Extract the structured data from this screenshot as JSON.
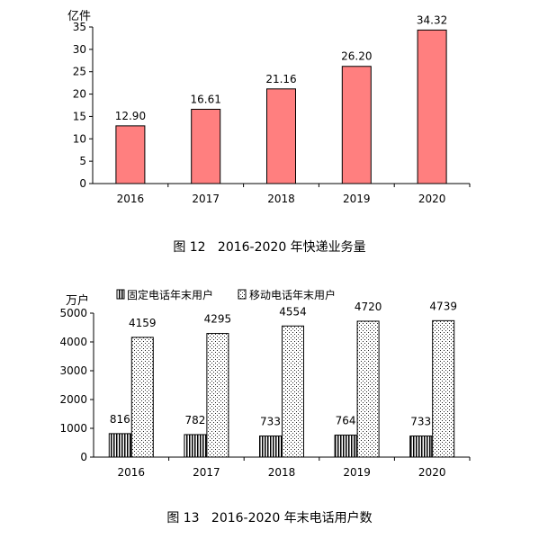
{
  "chart_data": [
    {
      "type": "bar",
      "caption": "图 12   2016-2020 年快递业务量",
      "unit": "亿件",
      "categories": [
        "2016",
        "2017",
        "2018",
        "2019",
        "2020"
      ],
      "values": [
        12.9,
        16.61,
        21.16,
        26.2,
        34.32
      ],
      "value_labels": [
        "12.90",
        "16.61",
        "21.16",
        "26.20",
        "34.32"
      ],
      "yticks": [
        "0",
        "5",
        "10",
        "15",
        "20",
        "25",
        "30",
        "35"
      ],
      "ylim": [
        0,
        35
      ],
      "grid": false,
      "color": "#FF7F7F"
    },
    {
      "type": "bar",
      "caption": "图 13   2016-2020 年末电话用户数",
      "unit": "万户",
      "categories": [
        "2016",
        "2017",
        "2018",
        "2019",
        "2020"
      ],
      "series": [
        {
          "name": "固定电话年末用户",
          "values": [
            816,
            782,
            733,
            764,
            733
          ],
          "labels": [
            "816",
            "782",
            "733",
            "764",
            "733"
          ],
          "pattern": "vertical-stripes"
        },
        {
          "name": "移动电话年末用户",
          "values": [
            4159,
            4295,
            4554,
            4720,
            4739
          ],
          "labels": [
            "4159",
            "4295",
            "4554",
            "4720",
            "4739"
          ],
          "pattern": "dots"
        }
      ],
      "yticks": [
        "0",
        "1000",
        "2000",
        "3000",
        "4000",
        "5000"
      ],
      "ylim": [
        0,
        5000
      ],
      "legend": "top",
      "grid": false
    }
  ]
}
